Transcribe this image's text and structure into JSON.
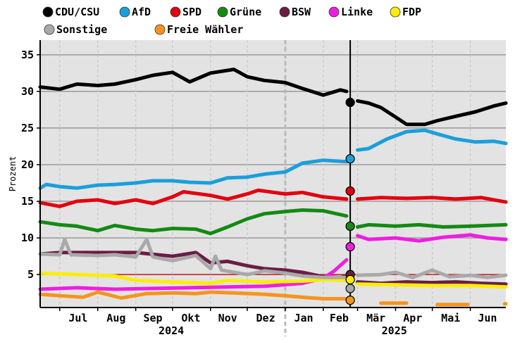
{
  "chart_data": {
    "type": "line",
    "ylabel": "Prozent",
    "ylim": [
      0.5,
      37
    ],
    "yticks": [
      5,
      10,
      15,
      20,
      25,
      30,
      35
    ],
    "threshold": 5,
    "threshold_color": "#cc0000",
    "x_axis": {
      "start": "2024-06-15",
      "end": "2025-06-30",
      "month_labels": [
        {
          "label": "Jul",
          "date": "2024-07-16"
        },
        {
          "label": "Aug",
          "date": "2024-08-16"
        },
        {
          "label": "Sep",
          "date": "2024-09-15"
        },
        {
          "label": "Okt",
          "date": "2024-10-16"
        },
        {
          "label": "Nov",
          "date": "2024-11-15"
        },
        {
          "label": "Dez",
          "date": "2024-12-16"
        },
        {
          "label": "Jan",
          "date": "2025-01-16"
        },
        {
          "label": "Feb",
          "date": "2025-02-14"
        },
        {
          "label": "Mär",
          "date": "2025-03-16"
        },
        {
          "label": "Apr",
          "date": "2025-04-15"
        },
        {
          "label": "Mai",
          "date": "2025-05-16"
        },
        {
          "label": "Jun",
          "date": "2025-06-15"
        }
      ],
      "month_starts": [
        "2024-07-01",
        "2024-08-01",
        "2024-09-01",
        "2024-10-01",
        "2024-11-01",
        "2024-12-01",
        "2025-01-01",
        "2025-02-01",
        "2025-03-01",
        "2025-04-01",
        "2025-05-01",
        "2025-06-01"
      ],
      "year_labels": [
        {
          "label": "2024",
          "date": "2024-09-30"
        },
        {
          "label": "2025",
          "date": "2025-03-31"
        }
      ],
      "year_divider_date": "2025-01-01",
      "election_date": "2025-02-23"
    },
    "election_results": [
      {
        "party": "CDU/CSU",
        "value": 28.5
      },
      {
        "party": "AfD",
        "value": 20.8
      },
      {
        "party": "SPD",
        "value": 16.4
      },
      {
        "party": "Grüne",
        "value": 11.6
      },
      {
        "party": "Linke",
        "value": 8.8
      },
      {
        "party": "BSW",
        "value": 5.0
      },
      {
        "party": "FDP",
        "value": 4.3
      },
      {
        "party": "Sonstige",
        "value": 3.1
      },
      {
        "party": "Freie Wähler",
        "value": 1.5
      }
    ],
    "series": [
      {
        "name": "CDU/CSU",
        "color": "#000000",
        "points": [
          [
            "2024-06-15",
            30.6
          ],
          [
            "2024-07-01",
            30.3
          ],
          [
            "2024-07-15",
            31.0
          ],
          [
            "2024-08-01",
            30.8
          ],
          [
            "2024-08-15",
            31.0
          ],
          [
            "2024-09-01",
            31.6
          ],
          [
            "2024-09-15",
            32.2
          ],
          [
            "2024-10-01",
            32.6
          ],
          [
            "2024-10-15",
            31.3
          ],
          [
            "2024-11-01",
            32.5
          ],
          [
            "2024-11-20",
            33.0
          ],
          [
            "2024-12-01",
            32.0
          ],
          [
            "2024-12-15",
            31.5
          ],
          [
            "2025-01-01",
            31.2
          ],
          [
            "2025-01-15",
            30.4
          ],
          [
            "2025-02-01",
            29.5
          ],
          [
            "2025-02-15",
            30.2
          ],
          [
            "2025-02-20",
            30.0
          ],
          null,
          [
            "2025-03-01",
            28.7
          ],
          [
            "2025-03-10",
            28.4
          ],
          [
            "2025-03-20",
            27.8
          ],
          [
            "2025-04-01",
            26.5
          ],
          [
            "2025-04-10",
            25.5
          ],
          [
            "2025-04-25",
            25.5
          ],
          [
            "2025-05-05",
            26.0
          ],
          [
            "2025-05-20",
            26.6
          ],
          [
            "2025-06-05",
            27.2
          ],
          [
            "2025-06-20",
            28.0
          ],
          [
            "2025-06-30",
            28.4
          ]
        ]
      },
      {
        "name": "AfD",
        "color": "#1a9fdb",
        "points": [
          [
            "2024-06-15",
            16.8
          ],
          [
            "2024-06-20",
            17.3
          ],
          [
            "2024-07-01",
            17.0
          ],
          [
            "2024-07-15",
            16.8
          ],
          [
            "2024-08-01",
            17.2
          ],
          [
            "2024-08-15",
            17.3
          ],
          [
            "2024-09-01",
            17.5
          ],
          [
            "2024-09-15",
            17.8
          ],
          [
            "2024-10-01",
            17.8
          ],
          [
            "2024-10-15",
            17.6
          ],
          [
            "2024-11-01",
            17.5
          ],
          [
            "2024-11-15",
            18.2
          ],
          [
            "2024-12-01",
            18.3
          ],
          [
            "2024-12-15",
            18.7
          ],
          [
            "2025-01-01",
            19.0
          ],
          [
            "2025-01-15",
            20.2
          ],
          [
            "2025-02-01",
            20.6
          ],
          [
            "2025-02-20",
            20.4
          ],
          null,
          [
            "2025-03-01",
            22.0
          ],
          [
            "2025-03-10",
            22.2
          ],
          [
            "2025-03-25",
            23.5
          ],
          [
            "2025-04-10",
            24.5
          ],
          [
            "2025-04-25",
            24.7
          ],
          [
            "2025-05-05",
            24.2
          ],
          [
            "2025-05-20",
            23.5
          ],
          [
            "2025-06-05",
            23.1
          ],
          [
            "2025-06-20",
            23.2
          ],
          [
            "2025-06-30",
            22.9
          ]
        ]
      },
      {
        "name": "SPD",
        "color": "#e3000f",
        "points": [
          [
            "2024-06-15",
            14.8
          ],
          [
            "2024-07-01",
            14.3
          ],
          [
            "2024-07-15",
            15.0
          ],
          [
            "2024-08-01",
            15.2
          ],
          [
            "2024-08-15",
            14.7
          ],
          [
            "2024-09-01",
            15.2
          ],
          [
            "2024-09-15",
            14.7
          ],
          [
            "2024-10-01",
            15.6
          ],
          [
            "2024-10-10",
            16.3
          ],
          [
            "2024-11-01",
            15.8
          ],
          [
            "2024-11-15",
            15.3
          ],
          [
            "2024-12-01",
            16.0
          ],
          [
            "2024-12-10",
            16.5
          ],
          [
            "2025-01-01",
            16.0
          ],
          [
            "2025-01-15",
            16.2
          ],
          [
            "2025-02-01",
            15.6
          ],
          [
            "2025-02-20",
            15.3
          ],
          null,
          [
            "2025-03-01",
            15.3
          ],
          [
            "2025-03-20",
            15.5
          ],
          [
            "2025-04-10",
            15.4
          ],
          [
            "2025-05-01",
            15.5
          ],
          [
            "2025-05-20",
            15.3
          ],
          [
            "2025-06-10",
            15.5
          ],
          [
            "2025-06-30",
            14.9
          ]
        ]
      },
      {
        "name": "Grüne",
        "color": "#138a13",
        "points": [
          [
            "2024-06-15",
            12.2
          ],
          [
            "2024-07-01",
            11.8
          ],
          [
            "2024-07-15",
            11.6
          ],
          [
            "2024-08-01",
            11.0
          ],
          [
            "2024-08-15",
            11.7
          ],
          [
            "2024-09-01",
            11.2
          ],
          [
            "2024-09-15",
            11.0
          ],
          [
            "2024-10-01",
            11.3
          ],
          [
            "2024-10-20",
            11.2
          ],
          [
            "2024-11-01",
            10.6
          ],
          [
            "2024-11-15",
            11.5
          ],
          [
            "2024-12-01",
            12.6
          ],
          [
            "2024-12-15",
            13.3
          ],
          [
            "2025-01-01",
            13.6
          ],
          [
            "2025-01-15",
            13.8
          ],
          [
            "2025-02-01",
            13.7
          ],
          [
            "2025-02-20",
            13.0
          ],
          null,
          [
            "2025-03-01",
            11.5
          ],
          [
            "2025-03-10",
            11.8
          ],
          [
            "2025-04-01",
            11.6
          ],
          [
            "2025-04-20",
            11.8
          ],
          [
            "2025-05-10",
            11.5
          ],
          [
            "2025-06-01",
            11.6
          ],
          [
            "2025-06-30",
            11.8
          ]
        ]
      },
      {
        "name": "BSW",
        "color": "#6b1d44",
        "points": [
          [
            "2024-06-15",
            7.8
          ],
          [
            "2024-07-01",
            8.0
          ],
          [
            "2024-08-01",
            8.0
          ],
          [
            "2024-09-01",
            8.0
          ],
          [
            "2024-10-01",
            7.5
          ],
          [
            "2024-10-20",
            8.0
          ],
          [
            "2024-11-01",
            6.6
          ],
          [
            "2024-11-15",
            6.8
          ],
          [
            "2024-12-01",
            6.2
          ],
          [
            "2024-12-15",
            5.8
          ],
          [
            "2025-01-01",
            5.6
          ],
          [
            "2025-01-15",
            5.3
          ],
          [
            "2025-02-01",
            4.7
          ],
          [
            "2025-02-15",
            4.6
          ],
          [
            "2025-02-20",
            4.8
          ],
          null,
          [
            "2025-03-01",
            4.0
          ],
          [
            "2025-03-20",
            3.8
          ],
          [
            "2025-04-10",
            4.0
          ],
          [
            "2025-05-01",
            3.9
          ],
          [
            "2025-05-20",
            4.0
          ],
          [
            "2025-06-10",
            3.8
          ],
          [
            "2025-06-30",
            3.7
          ]
        ]
      },
      {
        "name": "Linke",
        "color": "#ee1ee0",
        "points": [
          [
            "2024-06-15",
            3.0
          ],
          [
            "2024-07-15",
            3.2
          ],
          [
            "2024-08-15",
            3.0
          ],
          [
            "2024-09-15",
            3.1
          ],
          [
            "2024-10-15",
            3.2
          ],
          [
            "2024-11-15",
            3.3
          ],
          [
            "2024-12-15",
            3.4
          ],
          [
            "2025-01-15",
            3.8
          ],
          [
            "2025-02-01",
            4.5
          ],
          [
            "2025-02-10",
            5.5
          ],
          [
            "2025-02-20",
            7.0
          ],
          null,
          [
            "2025-03-01",
            10.3
          ],
          [
            "2025-03-10",
            9.8
          ],
          [
            "2025-04-01",
            10.0
          ],
          [
            "2025-04-20",
            9.6
          ],
          [
            "2025-05-10",
            10.1
          ],
          [
            "2025-06-01",
            10.4
          ],
          [
            "2025-06-15",
            10.0
          ],
          [
            "2025-06-30",
            9.8
          ]
        ]
      },
      {
        "name": "FDP",
        "color": "#ffed00",
        "points": [
          [
            "2024-06-15",
            5.2
          ],
          [
            "2024-07-15",
            5.0
          ],
          [
            "2024-08-15",
            4.8
          ],
          [
            "2024-09-01",
            4.2
          ],
          [
            "2024-10-01",
            4.0
          ],
          [
            "2024-11-01",
            3.8
          ],
          [
            "2024-11-15",
            4.2
          ],
          [
            "2024-12-15",
            4.0
          ],
          [
            "2025-01-15",
            4.1
          ],
          [
            "2025-02-01",
            4.3
          ],
          [
            "2025-02-20",
            4.2
          ],
          null,
          [
            "2025-03-01",
            3.7
          ],
          [
            "2025-04-01",
            3.6
          ],
          [
            "2025-05-01",
            3.5
          ],
          [
            "2025-06-01",
            3.5
          ],
          [
            "2025-06-30",
            3.3
          ]
        ]
      },
      {
        "name": "Sonstige",
        "color": "#a9a9a9",
        "points": [
          [
            "2024-06-15",
            7.8
          ],
          [
            "2024-07-01",
            7.7
          ],
          [
            "2024-07-05",
            9.8
          ],
          [
            "2024-07-10",
            7.7
          ],
          [
            "2024-08-01",
            7.6
          ],
          [
            "2024-08-15",
            7.7
          ],
          [
            "2024-09-01",
            7.4
          ],
          [
            "2024-09-10",
            9.8
          ],
          [
            "2024-09-15",
            7.4
          ],
          [
            "2024-10-01",
            6.9
          ],
          [
            "2024-10-20",
            7.6
          ],
          [
            "2024-11-01",
            5.8
          ],
          [
            "2024-11-05",
            7.5
          ],
          [
            "2024-11-10",
            5.6
          ],
          [
            "2024-12-01",
            5.0
          ],
          [
            "2024-12-15",
            5.5
          ],
          [
            "2025-01-01",
            5.2
          ],
          [
            "2025-01-15",
            4.8
          ],
          [
            "2025-02-01",
            4.6
          ],
          [
            "2025-02-20",
            4.6
          ],
          null,
          [
            "2025-03-01",
            4.9
          ],
          [
            "2025-03-20",
            5.0
          ],
          [
            "2025-04-01",
            5.3
          ],
          [
            "2025-04-15",
            4.6
          ],
          [
            "2025-05-01",
            5.6
          ],
          [
            "2025-05-15",
            4.7
          ],
          [
            "2025-06-01",
            4.9
          ],
          [
            "2025-06-15",
            4.6
          ],
          [
            "2025-06-30",
            4.9
          ]
        ]
      },
      {
        "name": "Freie Wähler",
        "color": "#f7941d",
        "points": [
          [
            "2024-06-15",
            2.3
          ],
          [
            "2024-07-01",
            2.1
          ],
          [
            "2024-07-20",
            1.9
          ],
          [
            "2024-08-01",
            2.6
          ],
          [
            "2024-08-20",
            1.8
          ],
          [
            "2024-09-10",
            2.4
          ],
          [
            "2024-10-01",
            2.5
          ],
          [
            "2024-10-20",
            2.4
          ],
          [
            "2024-11-01",
            2.6
          ],
          [
            "2024-11-20",
            2.5
          ],
          [
            "2024-12-15",
            2.3
          ],
          [
            "2025-01-01",
            2.1
          ],
          [
            "2025-01-15",
            1.9
          ],
          [
            "2025-02-01",
            1.7
          ],
          [
            "2025-02-20",
            1.7
          ],
          null,
          [
            "2025-03-20",
            1.1
          ],
          [
            "2025-04-10",
            1.1
          ],
          null,
          [
            "2025-05-05",
            0.9
          ],
          [
            "2025-05-30",
            0.9
          ],
          null,
          [
            "2025-06-29",
            1.0
          ],
          [
            "2025-06-30",
            1.0
          ]
        ]
      }
    ]
  }
}
